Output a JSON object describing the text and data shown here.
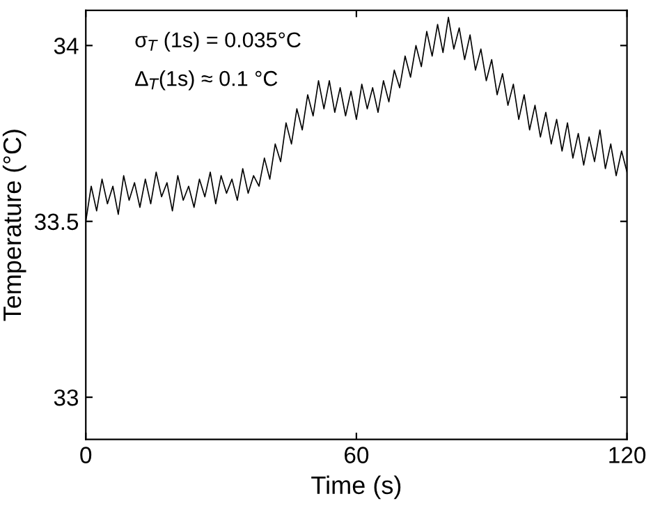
{
  "chart_data": {
    "type": "line",
    "xlabel": "Time (s)",
    "ylabel": "Temperature (°C)",
    "annotations": [
      "σ$_{T}$ (1s) = 0.035°C",
      "Δ$_{T}$(1s) ≈ 0.1 °C"
    ],
    "x": [
      0,
      1.2,
      2.4,
      3.6,
      4.8,
      6,
      7.2,
      8.4,
      9.6,
      10.8,
      12,
      13.2,
      14.4,
      15.6,
      16.8,
      18,
      19.2,
      20.4,
      21.6,
      22.8,
      24,
      25.2,
      26.4,
      27.6,
      28.8,
      30,
      31.2,
      32.4,
      33.6,
      34.8,
      36,
      37.2,
      38.4,
      39.6,
      40.8,
      42,
      43.2,
      44.4,
      45.6,
      46.8,
      48,
      49.2,
      50.4,
      51.6,
      52.8,
      54,
      55.2,
      56.4,
      57.6,
      58.8,
      60,
      61.2,
      62.4,
      63.6,
      64.8,
      66,
      67.2,
      68.4,
      69.6,
      70.8,
      72,
      73.2,
      74.4,
      75.6,
      76.8,
      78,
      79.2,
      80.4,
      81.6,
      82.8,
      84,
      85.2,
      86.4,
      87.6,
      88.8,
      90,
      91.2,
      92.4,
      93.6,
      94.8,
      96,
      97.2,
      98.4,
      99.6,
      100.8,
      102,
      103.2,
      104.4,
      105.6,
      106.8,
      108,
      109.2,
      110.4,
      111.6,
      112.8,
      114,
      115.2,
      116.4,
      117.6,
      118.8,
      120
    ],
    "series": [
      {
        "color": "#000000",
        "values": [
          33.5,
          33.6,
          33.53,
          33.62,
          33.55,
          33.6,
          33.52,
          33.63,
          33.56,
          33.61,
          33.54,
          33.62,
          33.55,
          33.64,
          33.57,
          33.61,
          33.53,
          33.63,
          33.56,
          33.6,
          33.54,
          33.62,
          33.57,
          33.64,
          33.55,
          33.63,
          33.58,
          33.62,
          33.56,
          33.65,
          33.58,
          33.63,
          33.6,
          33.68,
          33.62,
          33.72,
          33.67,
          33.78,
          33.72,
          33.82,
          33.76,
          33.86,
          33.8,
          33.9,
          33.82,
          33.9,
          33.81,
          33.88,
          33.8,
          33.87,
          33.79,
          33.89,
          33.82,
          33.88,
          33.81,
          33.9,
          33.84,
          33.93,
          33.88,
          33.97,
          33.91,
          34.0,
          33.94,
          34.04,
          33.97,
          34.06,
          33.98,
          34.08,
          33.99,
          34.05,
          33.96,
          34.03,
          33.93,
          33.99,
          33.9,
          33.96,
          33.86,
          33.92,
          33.83,
          33.89,
          33.79,
          33.86,
          33.76,
          33.83,
          33.74,
          33.81,
          33.72,
          33.79,
          33.7,
          33.78,
          33.68,
          33.75,
          33.66,
          33.74,
          33.67,
          33.76,
          33.65,
          33.72,
          33.63,
          33.7,
          33.64
        ]
      }
    ],
    "xlim": [
      0,
      120
    ],
    "xticks": [
      0,
      60,
      120
    ],
    "ylim": [
      32.88,
      34.1
    ],
    "yticks": [
      33,
      33.5,
      34
    ],
    "grid": false,
    "legend": false,
    "marker": "none",
    "line_style": "solid"
  }
}
